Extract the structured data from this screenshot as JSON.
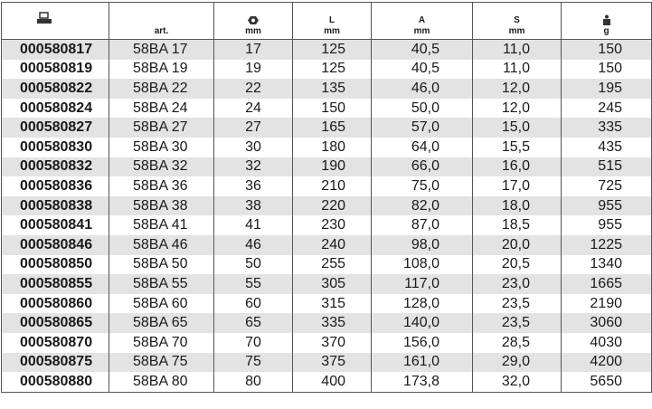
{
  "table": {
    "header": {
      "art": "art.",
      "hex_unit": "mm",
      "l_label": "L",
      "l_unit": "mm",
      "a_label": "A",
      "a_unit": "mm",
      "s_label": "S",
      "s_unit": "mm",
      "weight_unit": "g"
    },
    "rows": [
      [
        "000580817",
        "58BA 17",
        "17",
        "125",
        "40,5",
        "11,0",
        "150"
      ],
      [
        "000580819",
        "58BA 19",
        "19",
        "125",
        "40,5",
        "11,0",
        "150"
      ],
      [
        "000580822",
        "58BA 22",
        "22",
        "135",
        "46,0",
        "12,0",
        "195"
      ],
      [
        "000580824",
        "58BA 24",
        "24",
        "150",
        "50,0",
        "12,0",
        "245"
      ],
      [
        "000580827",
        "58BA 27",
        "27",
        "165",
        "57,0",
        "15,0",
        "335"
      ],
      [
        "000580830",
        "58BA 30",
        "30",
        "180",
        "64,0",
        "15,5",
        "435"
      ],
      [
        "000580832",
        "58BA 32",
        "32",
        "190",
        "66,0",
        "16,0",
        "515"
      ],
      [
        "000580836",
        "58BA 36",
        "36",
        "210",
        "75,0",
        "17,0",
        "725"
      ],
      [
        "000580838",
        "58BA 38",
        "38",
        "220",
        "82,0",
        "18,0",
        "955"
      ],
      [
        "000580841",
        "58BA 41",
        "41",
        "230",
        "87,0",
        "18,5",
        "955"
      ],
      [
        "000580846",
        "58BA 46",
        "46",
        "240",
        "98,0",
        "20,0",
        "1225"
      ],
      [
        "000580850",
        "58BA 50",
        "50",
        "255",
        "108,0",
        "20,5",
        "1340"
      ],
      [
        "000580855",
        "58BA 55",
        "55",
        "305",
        "117,0",
        "23,0",
        "1665"
      ],
      [
        "000580860",
        "58BA 60",
        "60",
        "315",
        "128,0",
        "23,5",
        "2190"
      ],
      [
        "000580865",
        "58BA 65",
        "65",
        "335",
        "140,0",
        "23,5",
        "3060"
      ],
      [
        "000580870",
        "58BA 70",
        "70",
        "370",
        "156,0",
        "28,5",
        "4030"
      ],
      [
        "000580875",
        "58BA 75",
        "75",
        "375",
        "161,0",
        "29,0",
        "4200"
      ],
      [
        "000580880",
        "58BA 80",
        "80",
        "400",
        "173,8",
        "32,0",
        "5650"
      ]
    ]
  }
}
